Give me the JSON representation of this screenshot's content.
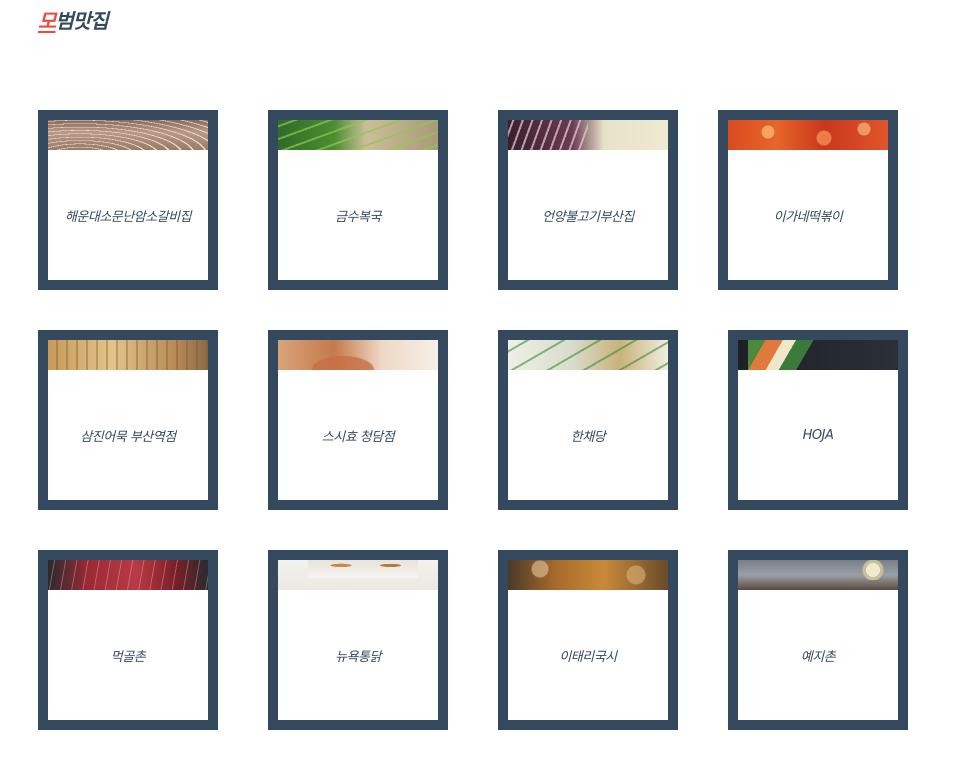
{
  "page": {
    "title_accent": "모",
    "title_rest": "범맛집"
  },
  "colors": {
    "frame": "#34495e",
    "accent": "#e74c3c",
    "text": "#34495e"
  },
  "restaurants": [
    {
      "name": "해운대소문난암소갈비집",
      "thumb": "food-photo"
    },
    {
      "name": "금수복국",
      "thumb": "food-photo"
    },
    {
      "name": "언양불고기부산집",
      "thumb": "food-photo"
    },
    {
      "name": "이가네떡볶이",
      "thumb": "food-photo"
    },
    {
      "name": "삼진어묵 부산역점",
      "thumb": "food-photo"
    },
    {
      "name": "스시효 청담점",
      "thumb": "food-photo"
    },
    {
      "name": "한채당",
      "thumb": "food-photo"
    },
    {
      "name": "HOJA",
      "thumb": "food-photo"
    },
    {
      "name": "먹골촌",
      "thumb": "food-photo"
    },
    {
      "name": "뉴욕통닭",
      "thumb": "food-photo"
    },
    {
      "name": "이태리국시",
      "thumb": "food-photo"
    },
    {
      "name": "예지촌",
      "thumb": "food-photo"
    }
  ]
}
